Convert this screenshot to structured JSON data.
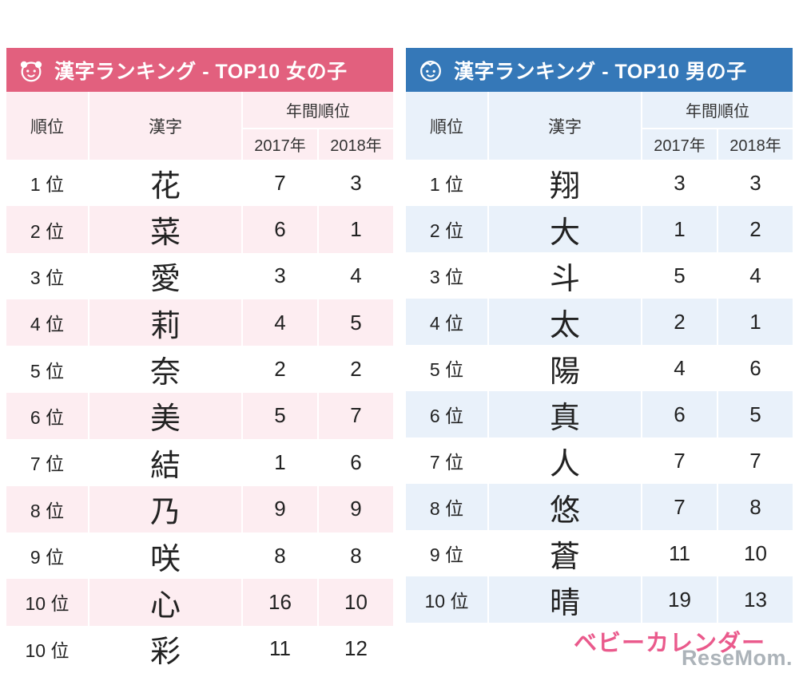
{
  "chart_data": [
    {
      "type": "table",
      "title": "漢字ランキング - TOP10 女の子",
      "icon": "girl-face-icon",
      "theme_color": "#e2607e",
      "tint_color": "#fdedf1",
      "headers": {
        "rank": "順位",
        "kanji": "漢字",
        "annual": "年間順位",
        "y2017": "2017年",
        "y2018": "2018年"
      },
      "rows": [
        [
          "1 位",
          "花",
          "7",
          "3"
        ],
        [
          "2 位",
          "菜",
          "6",
          "1"
        ],
        [
          "3 位",
          "愛",
          "3",
          "4"
        ],
        [
          "4 位",
          "莉",
          "4",
          "5"
        ],
        [
          "5 位",
          "奈",
          "2",
          "2"
        ],
        [
          "6 位",
          "美",
          "5",
          "7"
        ],
        [
          "7 位",
          "結",
          "1",
          "6"
        ],
        [
          "8 位",
          "乃",
          "9",
          "9"
        ],
        [
          "9 位",
          "咲",
          "8",
          "8"
        ],
        [
          "10 位",
          "心",
          "16",
          "10"
        ],
        [
          "10 位",
          "彩",
          "11",
          "12"
        ]
      ]
    },
    {
      "type": "table",
      "title": "漢字ランキング - TOP10 男の子",
      "icon": "boy-face-icon",
      "theme_color": "#3578b8",
      "tint_color": "#e9f1fa",
      "headers": {
        "rank": "順位",
        "kanji": "漢字",
        "annual": "年間順位",
        "y2017": "2017年",
        "y2018": "2018年"
      },
      "rows": [
        [
          "1 位",
          "翔",
          "3",
          "3"
        ],
        [
          "2 位",
          "大",
          "1",
          "2"
        ],
        [
          "3 位",
          "斗",
          "5",
          "4"
        ],
        [
          "4 位",
          "太",
          "2",
          "1"
        ],
        [
          "5 位",
          "陽",
          "4",
          "6"
        ],
        [
          "6 位",
          "真",
          "6",
          "5"
        ],
        [
          "7 位",
          "人",
          "7",
          "7"
        ],
        [
          "8 位",
          "悠",
          "7",
          "8"
        ],
        [
          "9 位",
          "蒼",
          "11",
          "10"
        ],
        [
          "10 位",
          "晴",
          "19",
          "13"
        ]
      ]
    }
  ],
  "footer": {
    "baby_calendar_logo": "ベビーカレンダー",
    "resemom_watermark": "ReseMom."
  }
}
